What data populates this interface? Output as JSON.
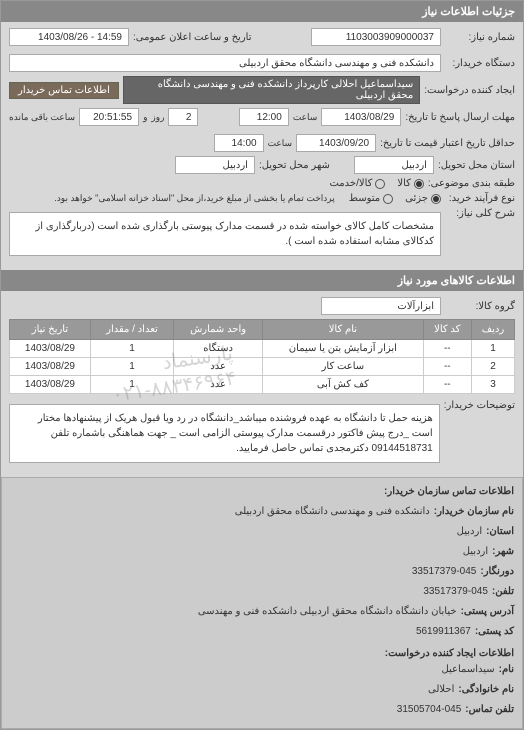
{
  "header": {
    "title": "جزئیات اطلاعات نیاز"
  },
  "fields": {
    "req_no_label": "شماره نیاز:",
    "req_no": "1103003909000037",
    "announce_label": "تاریخ و ساعت اعلان عمومی:",
    "announce_value": "14:59 - 1403/08/26",
    "buyer_label": "دستگاه خریدار:",
    "buyer_value": "دانشکده فنی و مهندسی دانشگاه محقق اردبیلی",
    "creator_label": "ایجاد کننده درخواست:",
    "creator_value": "سیداسماعیل احلالی کارپرداز دانشکده فنی و مهندسی دانشگاه محقق اردبیلی",
    "contact_btn": "اطلاعات تماس خریدار",
    "deadline_label": "مهلت ارسال پاسخ تا تاریخ:",
    "deadline_date": "1403/08/29",
    "deadline_time_label": "ساعت",
    "deadline_time": "12:00",
    "validity_label": "حداقل تاریخ اعتبار قیمت تا تاریخ:",
    "validity_date": "1403/09/20",
    "validity_time": "14:00",
    "delivery_prov_label": "استان محل تحویل:",
    "delivery_prov": "اردبیل",
    "delivery_city_label": "شهر محل تحویل:",
    "delivery_city": "اردبیل",
    "countdown_label": "ساعت باقی مانده",
    "countdown_time": "20:51:55",
    "countdown_and": "و",
    "countdown_days": "2",
    "countdown_days_label": "روز",
    "pack_label": "طبقه بندی موضوعی:",
    "pack_opt1": "کالا",
    "pack_opt2": "کالا/خدمت",
    "proc_label": "نوع فرآیند خرید:",
    "proc_opt1": "جزئی",
    "proc_opt2": "متوسط",
    "proc_note": "پرداخت تمام یا بخشی از مبلغ خرید،از محل \"اسناد خزانه اسلامی\" خواهد بود.",
    "need_desc_label": "شرح کلی نیاز:",
    "need_desc": "مشخصات کامل کالای خواسته شده در قسمت مدارک پیوستی بارگذاری شده است (دربارگذاری از کدکالای مشابه استفاده شده است )."
  },
  "goods_header": "اطلاعات کالاهای مورد نیاز",
  "group_label": "گروه کالا:",
  "group_value": "ابزارآلات",
  "table": {
    "columns": [
      "ردیف",
      "کد کالا",
      "نام کالا",
      "واحد شمارش",
      "تعداد / مقدار",
      "تاریخ نیاز"
    ],
    "rows": [
      [
        "1",
        "--",
        "ابزار آزمایش بتن یا سیمان",
        "دستگاه",
        "1",
        "1403/08/29"
      ],
      [
        "2",
        "--",
        "ساعت کار",
        "عدد",
        "1",
        "1403/08/29"
      ],
      [
        "3",
        "--",
        "کف کش آبی",
        "عدد",
        "1",
        "1403/08/29"
      ]
    ]
  },
  "buyer_notes_label": "توضیحات خریدار:",
  "buyer_notes": "هزینه حمل تا دانشگاه به عهده فروشنده میباشد_دانشگاه در رد ویا قبول هریک از پیشنهادها مختار است _درج پیش فاکتور درقسمت مدارک پیوستی الزامی است _ جهت هماهنگی باشماره تلفن 09144518731 دکترمجدی تماس حاصل فرمایید.",
  "org_header": "اطلاعات تماس سازمان خریدار:",
  "org": {
    "name_label": "نام سازمان خریدار:",
    "name": "دانشکده فنی و مهندسی دانشگاه محقق اردبیلی",
    "prov_label": "استان:",
    "prov": "اردبیل",
    "city_label": "شهر:",
    "city": "اردبیل",
    "zip_label": "دورنگار:",
    "zip": "33517379-045",
    "phone_label": "تلفن:",
    "phone": "33517379-045",
    "addr_label": "آدرس پستی:",
    "addr": "خیابان دانشگاه دانشگاه محقق اردبیلی دانشکده فنی و مهندسی",
    "post_label": "کد پستی:",
    "post": "5619911367"
  },
  "creator_header": "اطلاعات ایجاد کننده درخواست:",
  "creator": {
    "name_label": "نام:",
    "name": "سیداسماعیل",
    "lname_label": "نام خانوادگی:",
    "lname": "احلالی",
    "phone_label": "تلفن تماس:",
    "phone": "31505704-045"
  },
  "watermark": "پارسنماد\n۰۲۱-۸۸۳۴۶۹۶۴"
}
